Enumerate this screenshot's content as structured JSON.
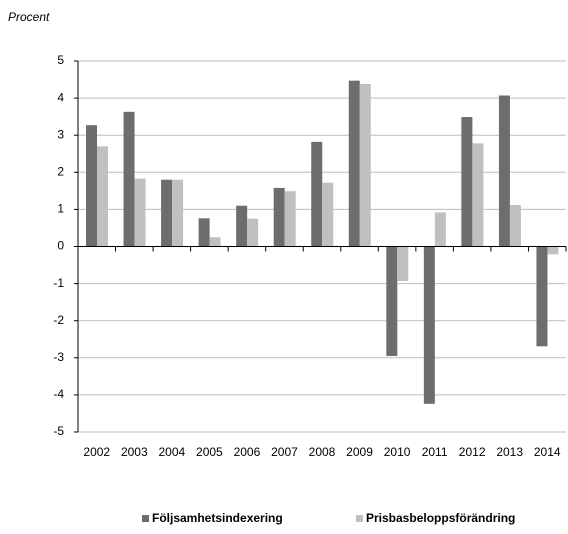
{
  "chart_data": {
    "type": "bar",
    "y_label": "Procent",
    "categories": [
      "2002",
      "2003",
      "2004",
      "2005",
      "2006",
      "2007",
      "2008",
      "2009",
      "2010",
      "2011",
      "2012",
      "2013",
      "2014"
    ],
    "series": [
      {
        "name": "Följsamhetsindexering",
        "color": "#6d6d6d",
        "values": [
          3.27,
          3.63,
          1.8,
          0.76,
          1.1,
          1.58,
          2.82,
          4.47,
          -2.95,
          -4.24,
          3.49,
          4.07,
          -2.69
        ]
      },
      {
        "name": "Prisbasbeloppsförändring",
        "color": "#c0c0c0",
        "values": [
          2.7,
          1.83,
          1.8,
          0.25,
          0.75,
          1.49,
          1.72,
          4.38,
          -0.93,
          0.92,
          2.78,
          1.12,
          -0.21
        ]
      }
    ],
    "ylim": [
      -5,
      5
    ],
    "yticks": [
      -5,
      -4,
      -3,
      -2,
      -1,
      0,
      1,
      2,
      3,
      4,
      5
    ],
    "grid": true,
    "legend": "bottom"
  }
}
